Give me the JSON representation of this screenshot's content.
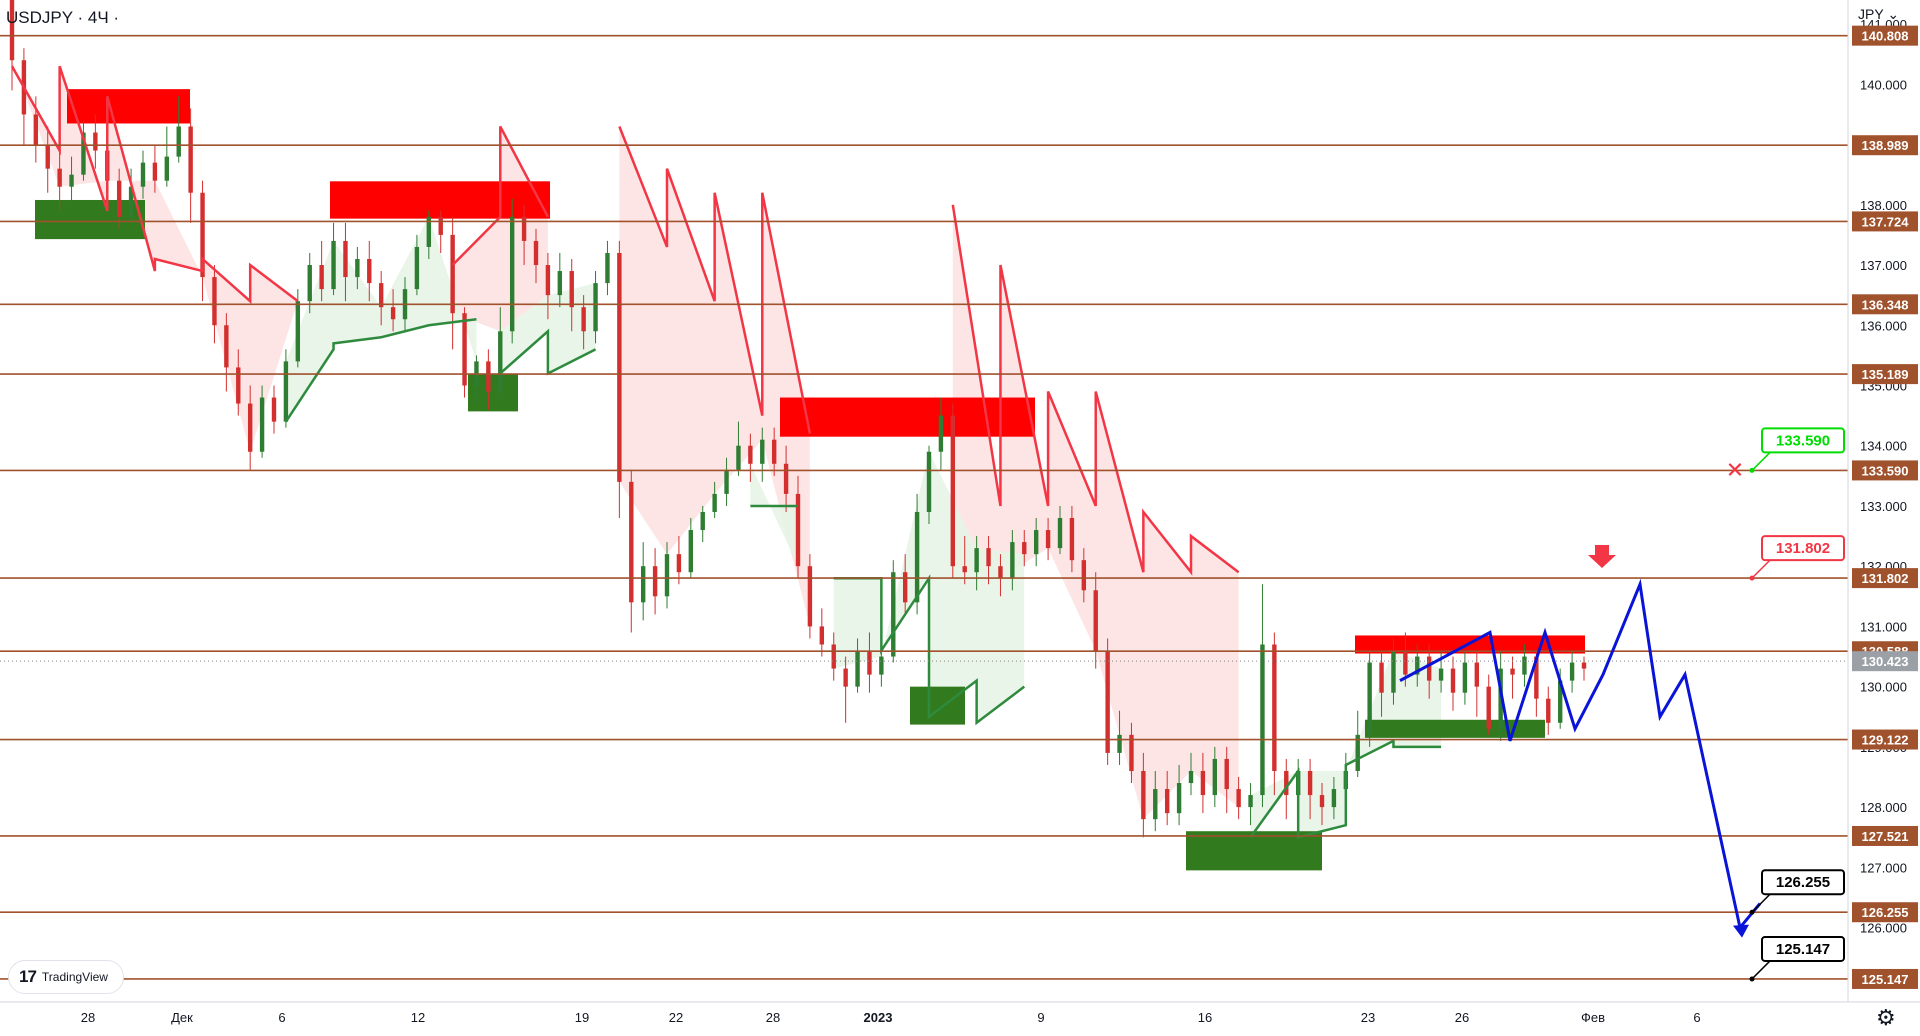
{
  "header": {
    "symbol": "USDJPY · 4Ч ·",
    "currency": "JPY"
  },
  "watermark": {
    "brand": "TradingView",
    "mark": "17"
  },
  "settings_icon": "gear-icon",
  "colors": {
    "level": "#a0522d",
    "bull": "#2e7d32",
    "bear": "#d32f2f",
    "trend_red": "#f23645",
    "trend_green": "#2e8b3e",
    "fill_red": "#fde2e2",
    "fill_green": "#e5f4e6",
    "zone_red": "#ff0000",
    "zone_green": "#327a1e",
    "projection": "#0a14d8"
  },
  "chart_data": {
    "type": "candlestick",
    "title": "USDJPY · 4Ч",
    "ylim": [
      124.2,
      141.4
    ],
    "y_ticks": [
      "141.000",
      "140.000",
      "139.000",
      "138.000",
      "137.000",
      "136.000",
      "135.000",
      "134.000",
      "133.000",
      "132.000",
      "131.000",
      "130.000",
      "129.000",
      "128.000",
      "127.000",
      "126.000"
    ],
    "x_labels": [
      "28",
      "Дек",
      "6",
      "12",
      "19",
      "22",
      "28",
      "2023",
      "9",
      "16",
      "23",
      "26",
      "Фев",
      "6"
    ],
    "last_price": "130.423",
    "levels": [
      "140.808",
      "138.989",
      "137.724",
      "136.348",
      "135.189",
      "133.590",
      "131.802",
      "130.588",
      "129.122",
      "127.521",
      "126.255",
      "125.147"
    ],
    "level_values": [
      140.808,
      138.989,
      137.724,
      136.348,
      135.189,
      133.59,
      131.802,
      130.588,
      129.122,
      127.521,
      126.255,
      125.147
    ],
    "callouts": [
      {
        "text": "133.590",
        "color": "#00dd00",
        "value": 133.59
      },
      {
        "text": "131.802",
        "color": "#f23645",
        "value": 131.802
      },
      {
        "text": "126.255",
        "color": "#000000",
        "value": 126.255
      },
      {
        "text": "125.147",
        "color": "#000000",
        "value": 125.147
      }
    ],
    "candles": [
      [
        141.4,
        140.4,
        141.5,
        139.9
      ],
      [
        140.4,
        139.5,
        140.6,
        139.0
      ],
      [
        139.5,
        139.0,
        139.8,
        138.7
      ],
      [
        139.0,
        138.6,
        139.3,
        138.2
      ],
      [
        138.6,
        138.3,
        138.9,
        137.9
      ],
      [
        138.3,
        138.5,
        138.8,
        138.0
      ],
      [
        138.5,
        139.2,
        139.4,
        138.4
      ],
      [
        139.2,
        138.9,
        139.5,
        138.6
      ],
      [
        138.9,
        138.4,
        139.2,
        138.1
      ],
      [
        138.4,
        137.8,
        138.6,
        137.6
      ],
      [
        137.8,
        138.3,
        138.6,
        137.7
      ],
      [
        138.3,
        138.7,
        138.9,
        138.1
      ],
      [
        138.7,
        138.4,
        139.0,
        138.2
      ],
      [
        138.4,
        138.8,
        139.3,
        138.3
      ],
      [
        138.8,
        139.3,
        139.8,
        138.7
      ],
      [
        139.3,
        138.2,
        139.6,
        137.7
      ],
      [
        138.2,
        136.8,
        138.4,
        136.4
      ],
      [
        136.8,
        136.0,
        137.0,
        135.7
      ],
      [
        136.0,
        135.3,
        136.2,
        134.9
      ],
      [
        135.3,
        134.7,
        135.6,
        134.5
      ],
      [
        134.7,
        133.9,
        135.0,
        133.6
      ],
      [
        133.9,
        134.8,
        135.0,
        133.8
      ],
      [
        134.8,
        134.4,
        135.0,
        134.2
      ],
      [
        134.4,
        135.4,
        135.6,
        134.3
      ],
      [
        135.4,
        136.4,
        136.6,
        135.3
      ],
      [
        136.4,
        137.0,
        137.2,
        136.2
      ],
      [
        137.0,
        136.6,
        137.4,
        136.4
      ],
      [
        136.6,
        137.4,
        137.7,
        136.5
      ],
      [
        137.4,
        136.8,
        137.7,
        136.4
      ],
      [
        136.8,
        137.1,
        137.3,
        136.6
      ],
      [
        137.1,
        136.7,
        137.4,
        136.4
      ],
      [
        136.7,
        136.3,
        136.9,
        136.0
      ],
      [
        136.3,
        136.1,
        136.6,
        135.9
      ],
      [
        136.1,
        136.6,
        136.8,
        135.9
      ],
      [
        136.6,
        137.3,
        137.5,
        136.5
      ],
      [
        137.3,
        137.8,
        137.9,
        137.1
      ],
      [
        137.8,
        137.5,
        137.9,
        137.2
      ],
      [
        137.5,
        136.2,
        137.8,
        135.6
      ],
      [
        136.2,
        135.0,
        136.3,
        134.8
      ],
      [
        135.0,
        135.4,
        135.5,
        134.7
      ],
      [
        135.4,
        134.9,
        135.6,
        134.6
      ],
      [
        134.9,
        135.9,
        136.3,
        134.8
      ],
      [
        135.9,
        137.8,
        138.1,
        135.7
      ],
      [
        137.8,
        137.4,
        138.0,
        137.0
      ],
      [
        137.4,
        137.0,
        137.6,
        136.7
      ],
      [
        137.0,
        136.5,
        137.2,
        136.1
      ],
      [
        136.5,
        136.9,
        137.2,
        136.3
      ],
      [
        136.9,
        136.3,
        137.1,
        135.9
      ],
      [
        136.3,
        135.9,
        136.5,
        135.6
      ],
      [
        135.9,
        136.7,
        136.9,
        135.7
      ],
      [
        136.7,
        137.2,
        137.4,
        136.5
      ],
      [
        137.2,
        133.4,
        137.4,
        132.8
      ],
      [
        133.4,
        131.4,
        133.6,
        130.9
      ],
      [
        131.4,
        132.0,
        132.4,
        131.1
      ],
      [
        132.0,
        131.5,
        132.3,
        131.2
      ],
      [
        131.5,
        132.2,
        132.4,
        131.3
      ],
      [
        132.2,
        131.9,
        132.5,
        131.7
      ],
      [
        131.9,
        132.6,
        132.8,
        131.8
      ],
      [
        132.6,
        132.9,
        133.0,
        132.4
      ],
      [
        132.9,
        133.2,
        133.4,
        132.8
      ],
      [
        133.2,
        133.6,
        133.8,
        133.0
      ],
      [
        133.6,
        134.0,
        134.4,
        133.5
      ],
      [
        134.0,
        133.7,
        134.2,
        133.4
      ],
      [
        133.7,
        134.1,
        134.3,
        133.4
      ],
      [
        134.1,
        133.7,
        134.3,
        133.5
      ],
      [
        133.7,
        133.2,
        134.0,
        132.9
      ],
      [
        133.2,
        132.0,
        133.5,
        131.8
      ],
      [
        132.0,
        131.0,
        132.2,
        130.8
      ],
      [
        131.0,
        130.7,
        131.3,
        130.5
      ],
      [
        130.7,
        130.3,
        130.9,
        130.1
      ],
      [
        130.3,
        130.0,
        130.5,
        129.4
      ],
      [
        130.0,
        130.6,
        130.8,
        129.9
      ],
      [
        130.6,
        130.2,
        130.9,
        129.9
      ],
      [
        130.2,
        130.5,
        130.7,
        130.0
      ],
      [
        130.5,
        131.9,
        132.1,
        130.4
      ],
      [
        131.9,
        131.4,
        132.2,
        131.2
      ],
      [
        131.4,
        132.9,
        133.2,
        131.2
      ],
      [
        132.9,
        133.9,
        134.0,
        132.7
      ],
      [
        133.9,
        134.5,
        134.8,
        133.6
      ],
      [
        134.5,
        132.0,
        134.7,
        131.8
      ],
      [
        132.0,
        131.9,
        132.5,
        131.7
      ],
      [
        131.9,
        132.3,
        132.5,
        131.6
      ],
      [
        132.3,
        132.0,
        132.5,
        131.7
      ],
      [
        132.0,
        131.8,
        132.2,
        131.5
      ],
      [
        131.8,
        132.4,
        132.6,
        131.6
      ],
      [
        132.4,
        132.2,
        132.6,
        132.0
      ],
      [
        132.2,
        132.6,
        132.8,
        132.0
      ],
      [
        132.6,
        132.3,
        132.8,
        132.1
      ],
      [
        132.3,
        132.8,
        133.0,
        132.2
      ],
      [
        132.8,
        132.1,
        133.0,
        131.9
      ],
      [
        132.1,
        131.6,
        132.3,
        131.4
      ],
      [
        131.6,
        130.6,
        131.9,
        130.3
      ],
      [
        130.6,
        128.9,
        130.8,
        128.7
      ],
      [
        128.9,
        129.2,
        129.6,
        128.7
      ],
      [
        129.2,
        128.6,
        129.4,
        128.4
      ],
      [
        128.6,
        127.8,
        128.9,
        127.5
      ],
      [
        127.8,
        128.3,
        128.6,
        127.6
      ],
      [
        128.3,
        127.9,
        128.6,
        127.7
      ],
      [
        127.9,
        128.4,
        128.7,
        127.7
      ],
      [
        128.4,
        128.6,
        128.9,
        128.2
      ],
      [
        128.6,
        128.2,
        128.9,
        127.9
      ],
      [
        128.2,
        128.8,
        129.0,
        128.0
      ],
      [
        128.8,
        128.3,
        129.0,
        127.9
      ],
      [
        128.3,
        128.0,
        128.5,
        127.8
      ],
      [
        128.0,
        128.2,
        128.4,
        127.7
      ],
      [
        128.2,
        130.7,
        131.7,
        128.0
      ],
      [
        130.7,
        128.6,
        130.9,
        128.2
      ],
      [
        128.6,
        128.2,
        128.8,
        127.8
      ],
      [
        128.2,
        128.6,
        128.8,
        127.9
      ],
      [
        128.6,
        128.2,
        128.8,
        127.8
      ],
      [
        128.2,
        128.0,
        128.4,
        127.7
      ],
      [
        128.0,
        128.3,
        128.5,
        127.8
      ],
      [
        128.3,
        128.6,
        128.9,
        128.1
      ],
      [
        128.6,
        129.2,
        129.6,
        128.5
      ],
      [
        129.2,
        130.4,
        130.6,
        129.0
      ],
      [
        130.4,
        129.9,
        130.6,
        129.5
      ],
      [
        129.9,
        130.6,
        130.8,
        129.7
      ],
      [
        130.6,
        130.2,
        130.9,
        130.0
      ],
      [
        130.2,
        130.5,
        130.7,
        130.0
      ],
      [
        130.5,
        130.1,
        130.7,
        129.8
      ],
      [
        130.1,
        130.3,
        130.6,
        129.9
      ],
      [
        130.3,
        129.9,
        130.5,
        129.6
      ],
      [
        129.9,
        130.4,
        130.6,
        129.7
      ],
      [
        130.4,
        130.0,
        130.6,
        129.5
      ],
      [
        130.0,
        129.3,
        130.2,
        129.2
      ],
      [
        129.3,
        130.3,
        130.6,
        129.1
      ],
      [
        130.3,
        130.2,
        130.5,
        129.8
      ],
      [
        130.2,
        130.5,
        130.7,
        130.0
      ],
      [
        130.5,
        129.8,
        130.6,
        129.5
      ],
      [
        129.8,
        129.4,
        130.0,
        129.2
      ],
      [
        129.4,
        130.1,
        130.3,
        129.3
      ],
      [
        130.1,
        130.4,
        130.6,
        129.9
      ],
      [
        130.4,
        130.3,
        130.5,
        130.1
      ]
    ],
    "supertrend_red": [
      [
        140.3,
        138.9
      ],
      [
        140.3,
        137.9
      ],
      [
        139.8,
        136.9
      ],
      [
        137.1,
        136.9
      ],
      [
        137.1,
        136.4
      ],
      [
        137.0,
        136.4
      ],
      [
        137.0,
        137.8
      ],
      [
        139.3,
        137.8
      ],
      [
        139.3,
        137.3
      ],
      [
        138.6,
        136.4
      ],
      [
        138.2,
        134.5
      ],
      [
        138.2,
        134.2
      ],
      [
        138.0,
        133.0
      ],
      [
        137.0,
        133.0
      ],
      [
        134.9,
        133.0
      ],
      [
        134.9,
        131.9
      ],
      [
        132.9,
        131.9
      ],
      [
        132.5,
        131.9
      ]
    ],
    "supertrend_green": [
      [
        134.4,
        135.6
      ],
      [
        135.7,
        135.8
      ],
      [
        135.8,
        136.0
      ],
      [
        136.0,
        136.1
      ],
      [
        135.2,
        135.9
      ],
      [
        135.2,
        135.6
      ],
      [
        133.0,
        133.0
      ],
      [
        131.8,
        131.8
      ],
      [
        130.6,
        131.8
      ],
      [
        129.5,
        130.1
      ],
      [
        129.4,
        130.0
      ],
      [
        127.5,
        128.6
      ],
      [
        127.5,
        127.7
      ],
      [
        128.7,
        129.1
      ],
      [
        129.0,
        129.0
      ]
    ],
    "zones_red": [
      [
        139.92,
        139.35
      ],
      [
        138.39,
        137.77
      ],
      [
        134.8,
        134.15
      ],
      [
        130.85,
        130.55
      ]
    ],
    "zones_green": [
      [
        138.08,
        137.43
      ],
      [
        135.2,
        134.57
      ],
      [
        130.0,
        129.37
      ],
      [
        129.45,
        129.15
      ],
      [
        127.6,
        126.95
      ]
    ],
    "projection": [
      130.1,
      130.9,
      129.1,
      130.9,
      129.3,
      130.2,
      131.7,
      129.5,
      130.2,
      126.0,
      126.4
    ]
  }
}
